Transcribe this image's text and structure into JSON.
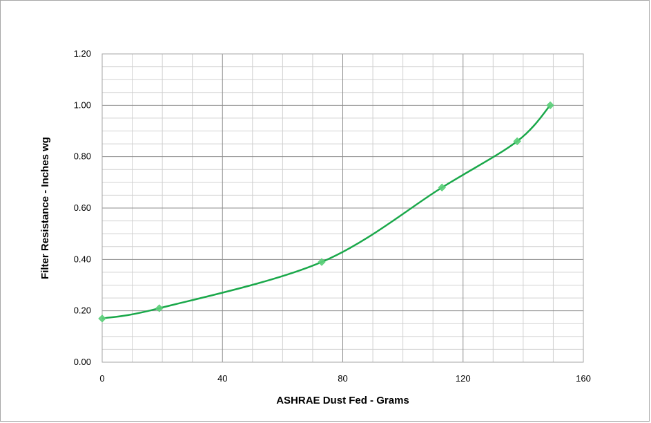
{
  "chart_data": {
    "type": "line",
    "title": "",
    "xlabel": "ASHRAE  Dust Fed - Grams",
    "ylabel": "Filter Resistance - Inches wg",
    "xlim": [
      0,
      160
    ],
    "ylim": [
      0,
      1.2
    ],
    "x_ticks": [
      "0",
      "40",
      "80",
      "120",
      "160"
    ],
    "y_ticks": [
      "0.00",
      "0.20",
      "0.40",
      "0.60",
      "0.80",
      "1.00",
      "1.20"
    ],
    "grid": true,
    "legend": "none",
    "series": [
      {
        "x": [
          0,
          19,
          73,
          113,
          138,
          149
        ],
        "y": [
          0.17,
          0.21,
          0.39,
          0.68,
          0.86,
          1.0
        ],
        "line_color": "#1aa84a",
        "marker": "diamond",
        "marker_color": "#5ccf7a"
      }
    ]
  }
}
